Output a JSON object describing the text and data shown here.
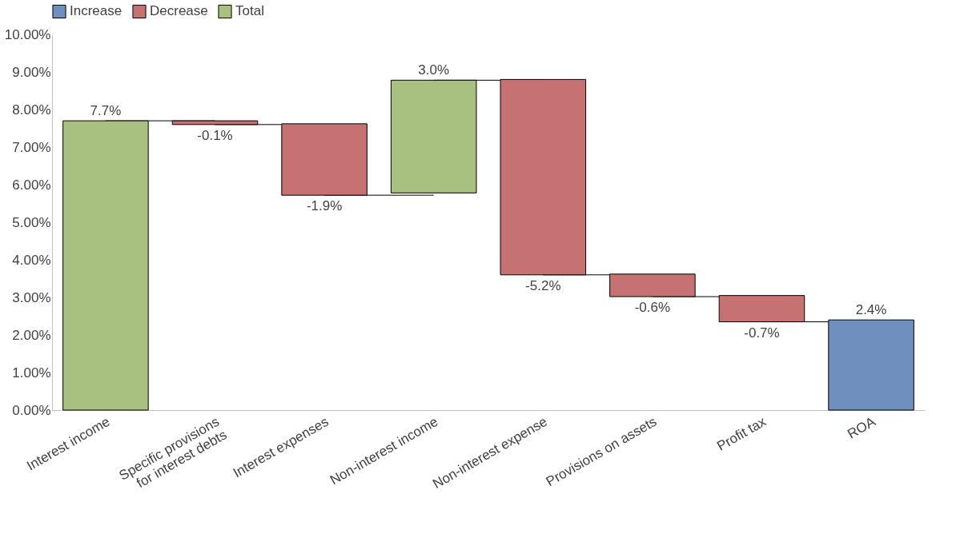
{
  "chart_data": {
    "type": "bar",
    "categories": [
      "Interest  income",
      "Specific provisions\nfor interest debts",
      "Interest expenses",
      "Non-interest income",
      "Non-interest expense",
      "Provisions on assets",
      "Profit tax",
      "ROA"
    ],
    "series": [
      {
        "name": "Increase",
        "color": "#6f8fbf",
        "values": [
          null,
          null,
          null,
          null,
          null,
          null,
          null,
          2.4
        ],
        "base": [
          null,
          null,
          null,
          null,
          null,
          null,
          null,
          0
        ]
      },
      {
        "name": "Decrease",
        "color": "#c77272",
        "values": [
          null,
          -0.1,
          -1.9,
          null,
          -5.2,
          -0.6,
          -0.7,
          null
        ],
        "base": [
          null,
          7.7,
          7.62,
          null,
          8.8,
          3.62,
          3.05,
          null
        ]
      },
      {
        "name": "Total",
        "color": "#a8c180",
        "values": [
          7.7,
          null,
          null,
          3.0,
          null,
          null,
          null,
          null
        ],
        "base": [
          0,
          null,
          null,
          5.78,
          null,
          null,
          null,
          null
        ]
      }
    ],
    "value_labels": [
      "7.7%",
      "-0.1%",
      "-1.9%",
      "3.0%",
      "-5.2%",
      "-0.6%",
      "-0.7%",
      "2.4%"
    ],
    "ylim": [
      0,
      10
    ],
    "yticks": [
      {
        "value": 0,
        "label": "0.00%"
      },
      {
        "value": 1,
        "label": "1.00%"
      },
      {
        "value": 2,
        "label": "2.00%"
      },
      {
        "value": 3,
        "label": "3.00%"
      },
      {
        "value": 4,
        "label": "4.00%"
      },
      {
        "value": 5,
        "label": "5.00%"
      },
      {
        "value": 6,
        "label": "6.00%"
      },
      {
        "value": 7,
        "label": "7.00%"
      },
      {
        "value": 8,
        "label": "8.00%"
      },
      {
        "value": 9,
        "label": "9.00%"
      },
      {
        "value": 10,
        "label": "10.00%"
      }
    ],
    "grid": false,
    "legend": "top"
  }
}
